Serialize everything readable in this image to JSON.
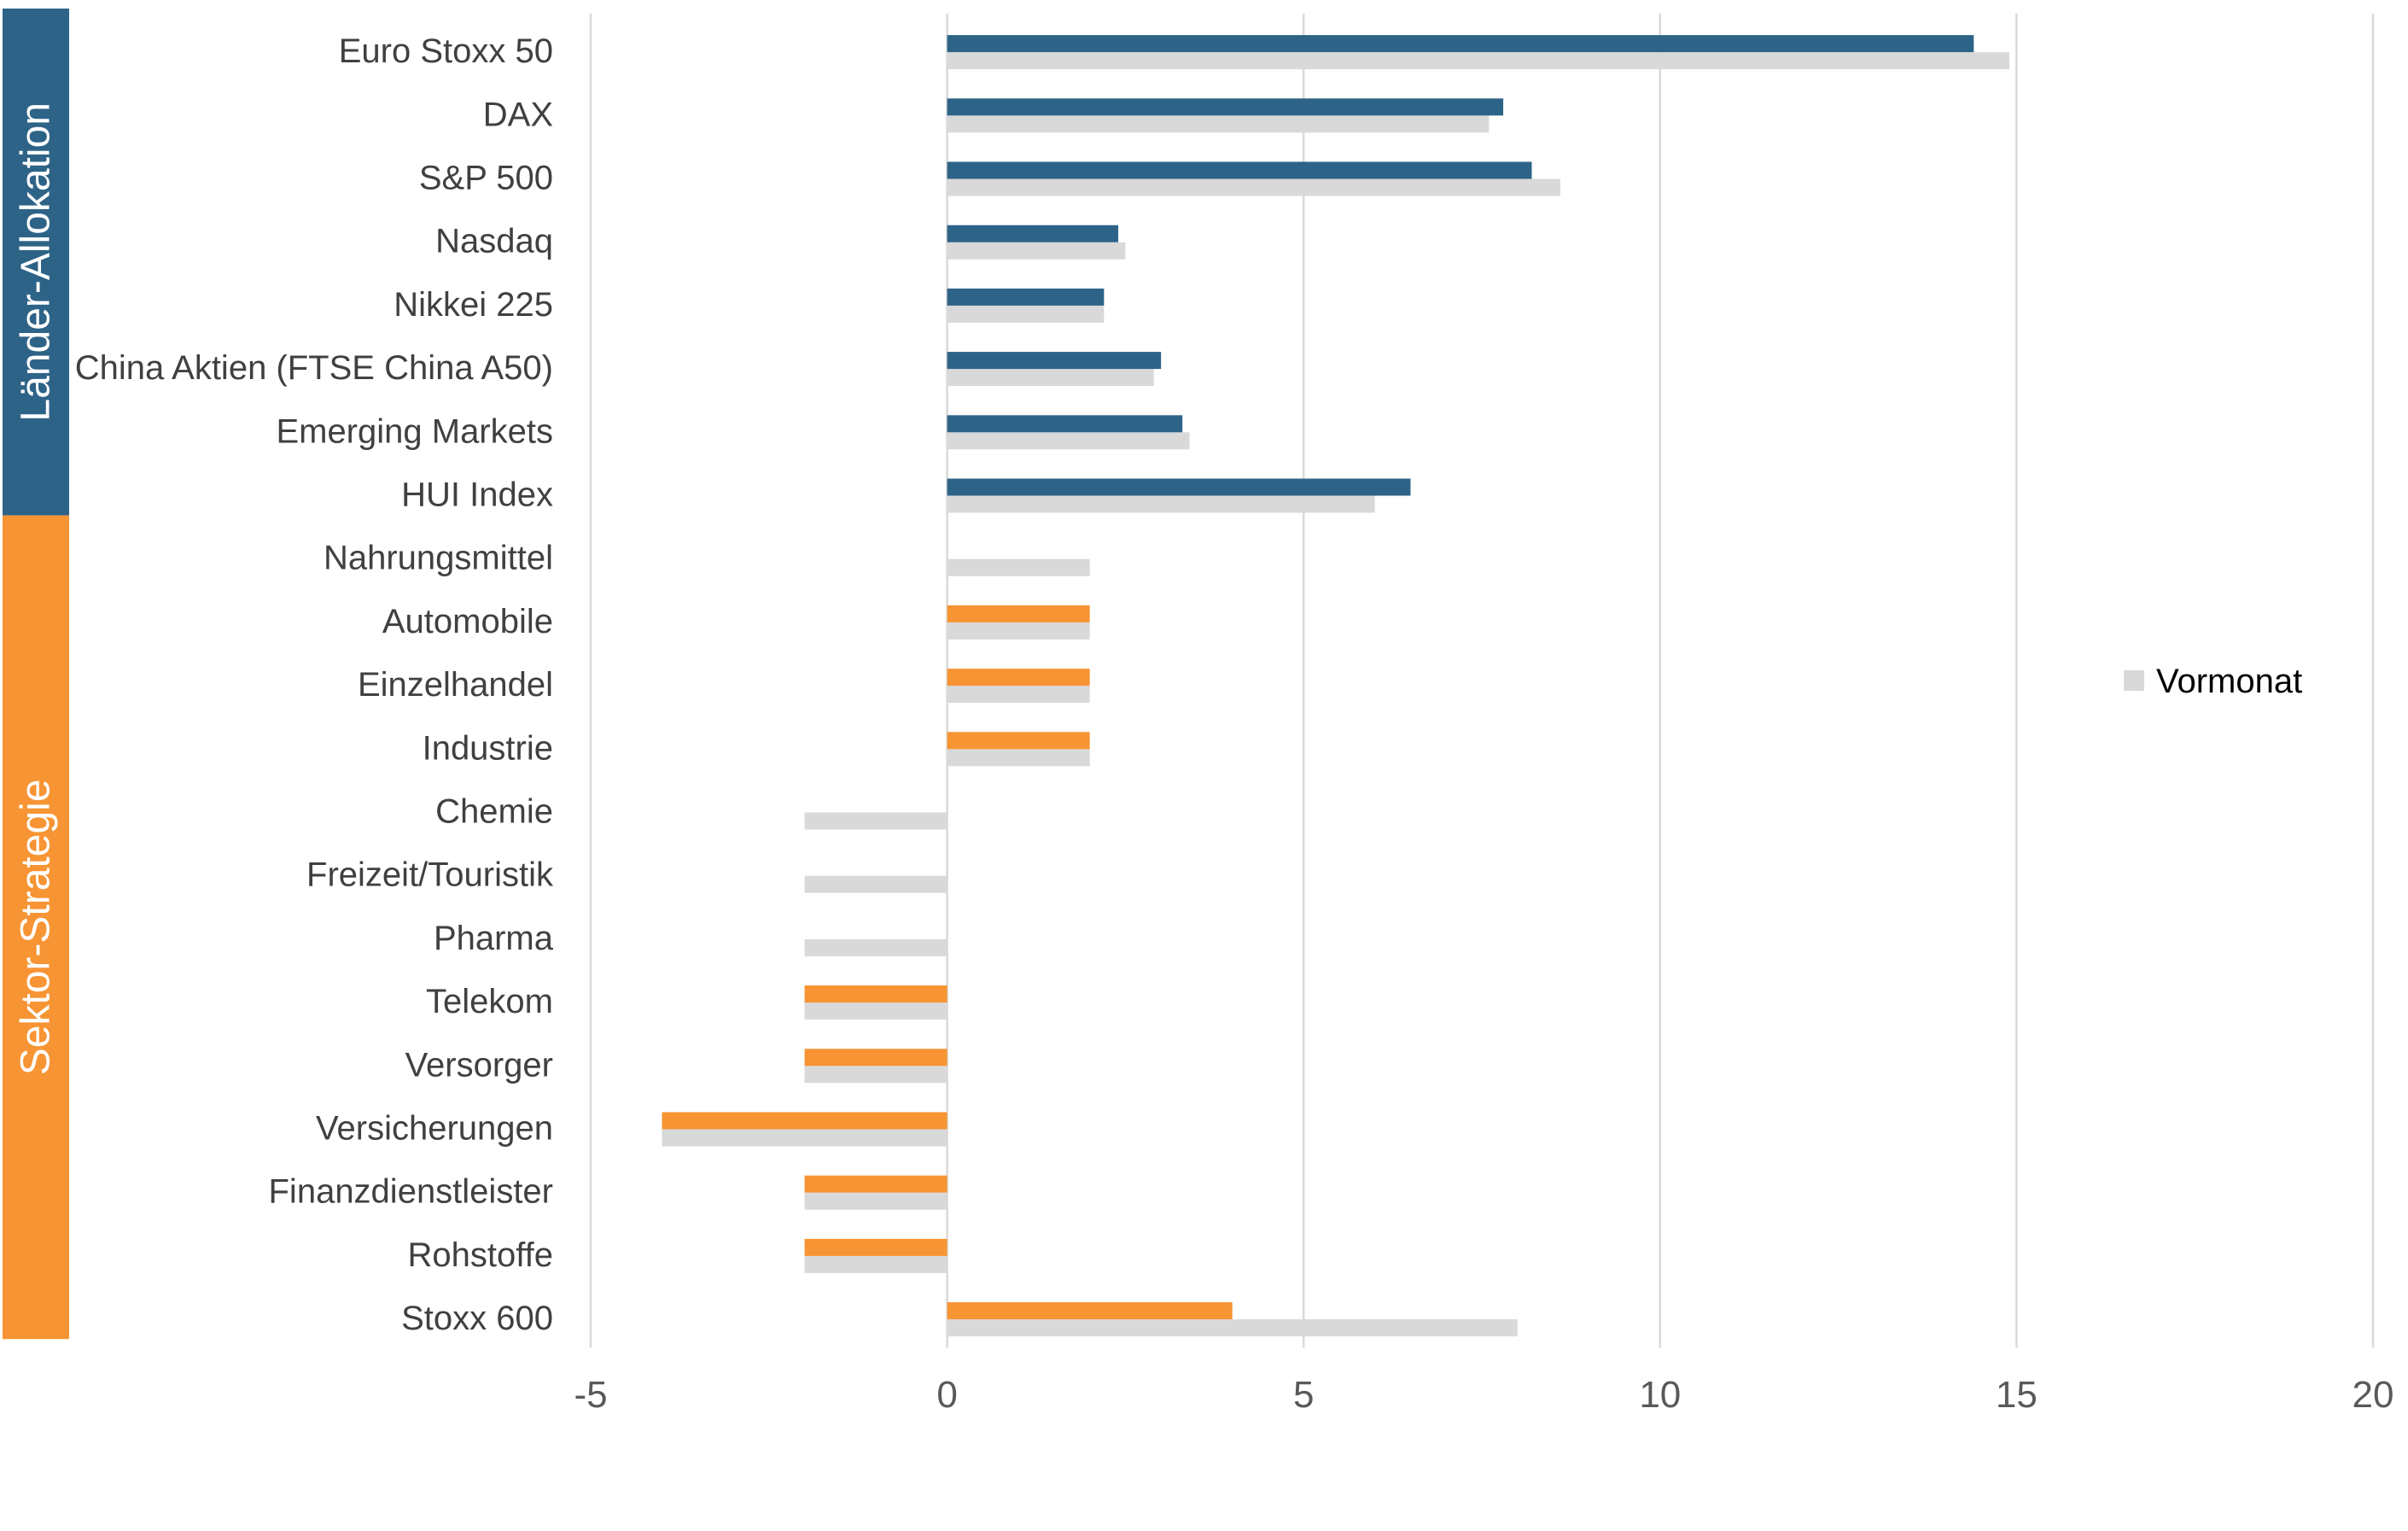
{
  "chart_data": {
    "type": "bar",
    "orientation": "horizontal",
    "categories": [
      "Euro Stoxx 50",
      "DAX",
      "S&P 500",
      "Nasdaq",
      "Nikkei 225",
      "China Aktien (FTSE China A50)",
      "Emerging Markets",
      "HUI Index",
      "Nahrungsmittel",
      "Automobile",
      "Einzelhandel",
      "Industrie",
      "Chemie",
      "Freizeit/Touristik",
      "Pharma",
      "Telekom",
      "Versorger",
      "Versicherungen",
      "Finanzdienstleister",
      "Rohstoffe",
      "Stoxx 600"
    ],
    "series": [
      {
        "values": [
          14.4,
          7.8,
          8.2,
          2.4,
          2.2,
          3.0,
          3.3,
          6.5,
          0,
          2,
          2,
          2,
          0,
          0,
          0,
          -2,
          -2,
          -4,
          -2,
          -2,
          4
        ]
      },
      {
        "name": "Vormonat",
        "values": [
          14.9,
          7.6,
          8.6,
          2.5,
          2.2,
          2.9,
          3.4,
          6.0,
          2,
          2,
          2,
          2,
          -2,
          -2,
          -2,
          -2,
          -2,
          -4,
          -2,
          -2,
          8
        ]
      }
    ],
    "xlim": [
      -5,
      20
    ],
    "xticks": [
      -5,
      0,
      5,
      10,
      15,
      20
    ],
    "grid": true,
    "legend": "right",
    "groups": [
      {
        "label": "Länder-Allokation",
        "count": 8,
        "color": "#2e6388"
      },
      {
        "label": "Sektor-Strategie",
        "count": 13,
        "color": "#f79433"
      }
    ],
    "colors": {
      "current_group1": "#2e6388",
      "current_group2": "#f79433",
      "previous": "#d9d9d9",
      "grid": "#d9d9d9"
    }
  }
}
